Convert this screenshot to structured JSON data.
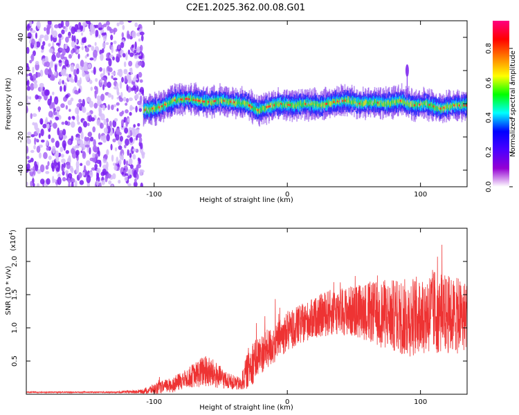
{
  "title": "C2E1.2025.362.00.08.G01",
  "chart_data": [
    {
      "type": "heatmap",
      "title": "C2E1.2025.362.00.08.G01",
      "xlabel": "Height of straight line (km)",
      "ylabel": "Frequency (Hz)",
      "xlim": [
        -196,
        135
      ],
      "ylim": [
        -50,
        50
      ],
      "xticks": [
        -100,
        0,
        100
      ],
      "yticks": [
        -40,
        -20,
        0,
        20,
        40
      ],
      "noise_region_x": [
        -196,
        -108
      ],
      "ridge": {
        "x": [
          -108,
          -95,
          -85,
          -75,
          -60,
          -50,
          -40,
          -30,
          -22,
          -15,
          -5,
          5,
          15,
          25,
          35,
          45,
          55,
          65,
          75,
          85,
          95,
          105,
          115,
          125,
          135
        ],
        "frequency": [
          -4,
          -2,
          2,
          3,
          1,
          2,
          1,
          0,
          -4,
          -2,
          0,
          -1,
          0,
          -1,
          1,
          2,
          0,
          1,
          0,
          2,
          -1,
          0,
          -3,
          -1,
          -1
        ]
      },
      "spike": {
        "x": 90,
        "frequency": 20
      },
      "colorbar": {
        "label": "Normalized spectral amplitude",
        "ticks": [
          "0.0",
          "0.2",
          "0.4",
          "0.6",
          "0.8"
        ],
        "colors": [
          "#ffffff",
          "#9400d3",
          "#4b00ff",
          "#0000ff",
          "#00ffff",
          "#00ff00",
          "#ffff00",
          "#ff8000",
          "#ff0000",
          "#ff0080"
        ]
      }
    },
    {
      "type": "line",
      "xlabel": "Height of straight line (km)",
      "ylabel": "SNR (10 * v/v)",
      "scale_note": "(x10",
      "scale_exp": "4",
      "xlim": [
        -196,
        135
      ],
      "ylim": [
        0,
        2.5
      ],
      "xticks": [
        -100,
        0,
        100
      ],
      "yticks": [
        "0.5",
        "1.0",
        "1.5",
        "2.0"
      ],
      "line_color": "#ee3333",
      "envelope": {
        "x": [
          -196,
          -130,
          -110,
          -100,
          -85,
          -75,
          -62,
          -55,
          -45,
          -35,
          -28,
          -20,
          -10,
          0,
          10,
          20,
          30,
          40,
          50,
          60,
          70,
          80,
          90,
          100,
          110,
          120,
          135
        ],
        "mean": [
          0.03,
          0.03,
          0.04,
          0.08,
          0.15,
          0.25,
          0.35,
          0.3,
          0.2,
          0.15,
          0.45,
          0.6,
          0.75,
          0.95,
          1.05,
          1.15,
          1.22,
          1.25,
          1.25,
          1.25,
          1.2,
          1.18,
          1.15,
          1.2,
          1.25,
          1.2,
          1.15
        ],
        "amplitude": [
          0.01,
          0.01,
          0.03,
          0.08,
          0.12,
          0.15,
          0.25,
          0.22,
          0.12,
          0.1,
          0.35,
          0.3,
          0.3,
          0.3,
          0.3,
          0.3,
          0.35,
          0.35,
          0.4,
          0.45,
          0.5,
          0.55,
          0.6,
          0.6,
          0.65,
          0.6,
          0.55
        ]
      }
    }
  ]
}
